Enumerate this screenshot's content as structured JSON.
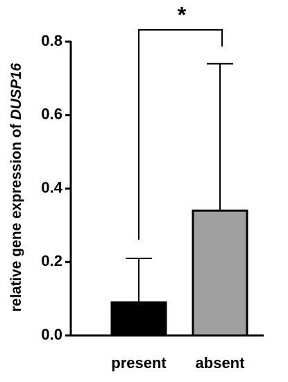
{
  "chart_data": {
    "type": "bar",
    "ylabel": "relative gene expression of",
    "ylabel_gene": "DUSP16",
    "categories": [
      "present",
      "absent"
    ],
    "values": [
      0.09,
      0.34
    ],
    "errors": [
      0.12,
      0.4
    ],
    "colors": [
      "#000000",
      "#a0a0a0"
    ],
    "ylim": [
      0,
      0.8
    ],
    "yticks": [
      {
        "value": 0,
        "label": "0.0"
      },
      0.2,
      0.4,
      0.6,
      0.8
    ],
    "annotation": "*"
  }
}
